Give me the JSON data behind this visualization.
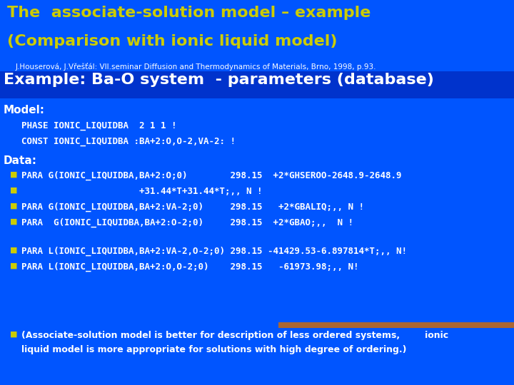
{
  "bg_color": "#0055ff",
  "title_line1": "The  associate-solution model – example",
  "title_line2": "(Comparison with ionic liquid model)",
  "title_color": "#cccc00",
  "subtitle": "J.Houserová, J.Vřešťál: VII.seminar Diffusion and Thermodynamics of Materials, Brno, 1998, p.93.",
  "subtitle_color": "#ffffff",
  "example_heading": "Example: Ba-O system  - parameters (database)",
  "example_heading_color": "#ffffff",
  "example_heading_bg": "#0033cc",
  "model_label": "Model:",
  "model_lines": [
    "PHASE IONIC_LIQUIDBA  2 1 1 !",
    "CONST IONIC_LIQUIDBA :BA+2:O,O-2,VA-2: !"
  ],
  "data_label": "Data:",
  "bullet_color": "#cccc00",
  "data_group1": [
    {
      "bullet": true,
      "text": "PARA G(IONIC_LIQUIDBA,BA+2:O;0)        298.15  +2*GHSEROO-2648.9-2648.9"
    },
    {
      "bullet": true,
      "text": "                      +31.44*T+31.44*T;,, N !"
    },
    {
      "bullet": true,
      "text": "PARA G(IONIC_LIQUIDBA,BA+2:VA-2;0)     298.15   +2*GBALIQ;,, N !"
    },
    {
      "bullet": true,
      "text": "PARA  G(IONIC_LIQUIDBA,BA+2:O-2;0)     298.15  +2*GBAO;,,  N !"
    }
  ],
  "data_group2": [
    {
      "bullet": true,
      "text": "PARA L(IONIC_LIQUIDBA,BA+2:VA-2,O-2;0) 298.15 -41429.53-6.897814*T;,, N!"
    },
    {
      "bullet": true,
      "text": "PARA L(IONIC_LIQUIDBA,BA+2:O,O-2;0)    298.15   -61973.98;,, N!"
    }
  ],
  "note_lines": [
    "(Associate-solution model is better for description of less ordered systems,        ionic",
    "liquid model is more appropriate for solutions with high degree of ordering.)"
  ],
  "strip_color": "#aa6633",
  "text_color": "#ffffff"
}
